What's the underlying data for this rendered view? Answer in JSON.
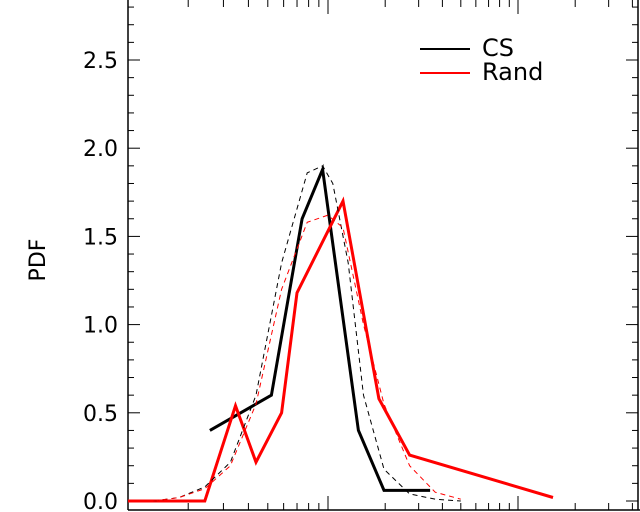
{
  "chart_data": {
    "type": "line",
    "title": "",
    "xlabel": "",
    "ylabel": "PDF",
    "ylim": [
      0.0,
      2.9
    ],
    "xlim": [
      0.0,
      10.0
    ],
    "x_tick_labels": "none",
    "y_ticks": [
      0.0,
      0.5,
      1.0,
      1.5,
      2.0,
      2.5
    ],
    "y_tick_labels": [
      "0.0",
      "0.5",
      "1.0",
      "1.5",
      "2.0",
      "2.5"
    ],
    "grid": false,
    "legend_position": "top-right",
    "series": [
      {
        "name": "CS",
        "color": "#000000",
        "style": "solid",
        "x": [
          1.6,
          2.8,
          3.4,
          3.8,
          4.5,
          5.0,
          5.9
        ],
        "y": [
          0.4,
          0.6,
          1.6,
          1.88,
          0.4,
          0.06,
          0.06
        ]
      },
      {
        "name": "Rand",
        "color": "#ff0000",
        "style": "solid",
        "x": [
          0.0,
          1.5,
          2.1,
          2.5,
          3.0,
          3.3,
          4.2,
          4.9,
          5.5,
          8.3
        ],
        "y": [
          0.0,
          0.0,
          0.54,
          0.22,
          0.5,
          1.18,
          1.7,
          0.58,
          0.26,
          0.02
        ]
      },
      {
        "color": "#000000",
        "style": "dashed",
        "x": [
          0.5,
          1.0,
          1.5,
          2.0,
          2.5,
          3.0,
          3.5,
          3.8,
          4.0,
          4.3,
          4.6,
          5.0,
          5.5,
          6.0,
          6.5
        ],
        "y": [
          0.0,
          0.02,
          0.08,
          0.22,
          0.6,
          1.35,
          1.86,
          1.9,
          1.8,
          1.35,
          0.6,
          0.18,
          0.04,
          0.01,
          0.0
        ]
      },
      {
        "color": "#ff0000",
        "style": "dashed",
        "x": [
          0.5,
          1.0,
          1.5,
          2.0,
          2.5,
          3.0,
          3.5,
          3.9,
          4.2,
          4.6,
          5.0,
          5.5,
          6.0,
          6.5
        ],
        "y": [
          0.0,
          0.02,
          0.07,
          0.2,
          0.55,
          1.2,
          1.58,
          1.62,
          1.55,
          1.0,
          0.55,
          0.2,
          0.05,
          0.01
        ]
      }
    ]
  }
}
